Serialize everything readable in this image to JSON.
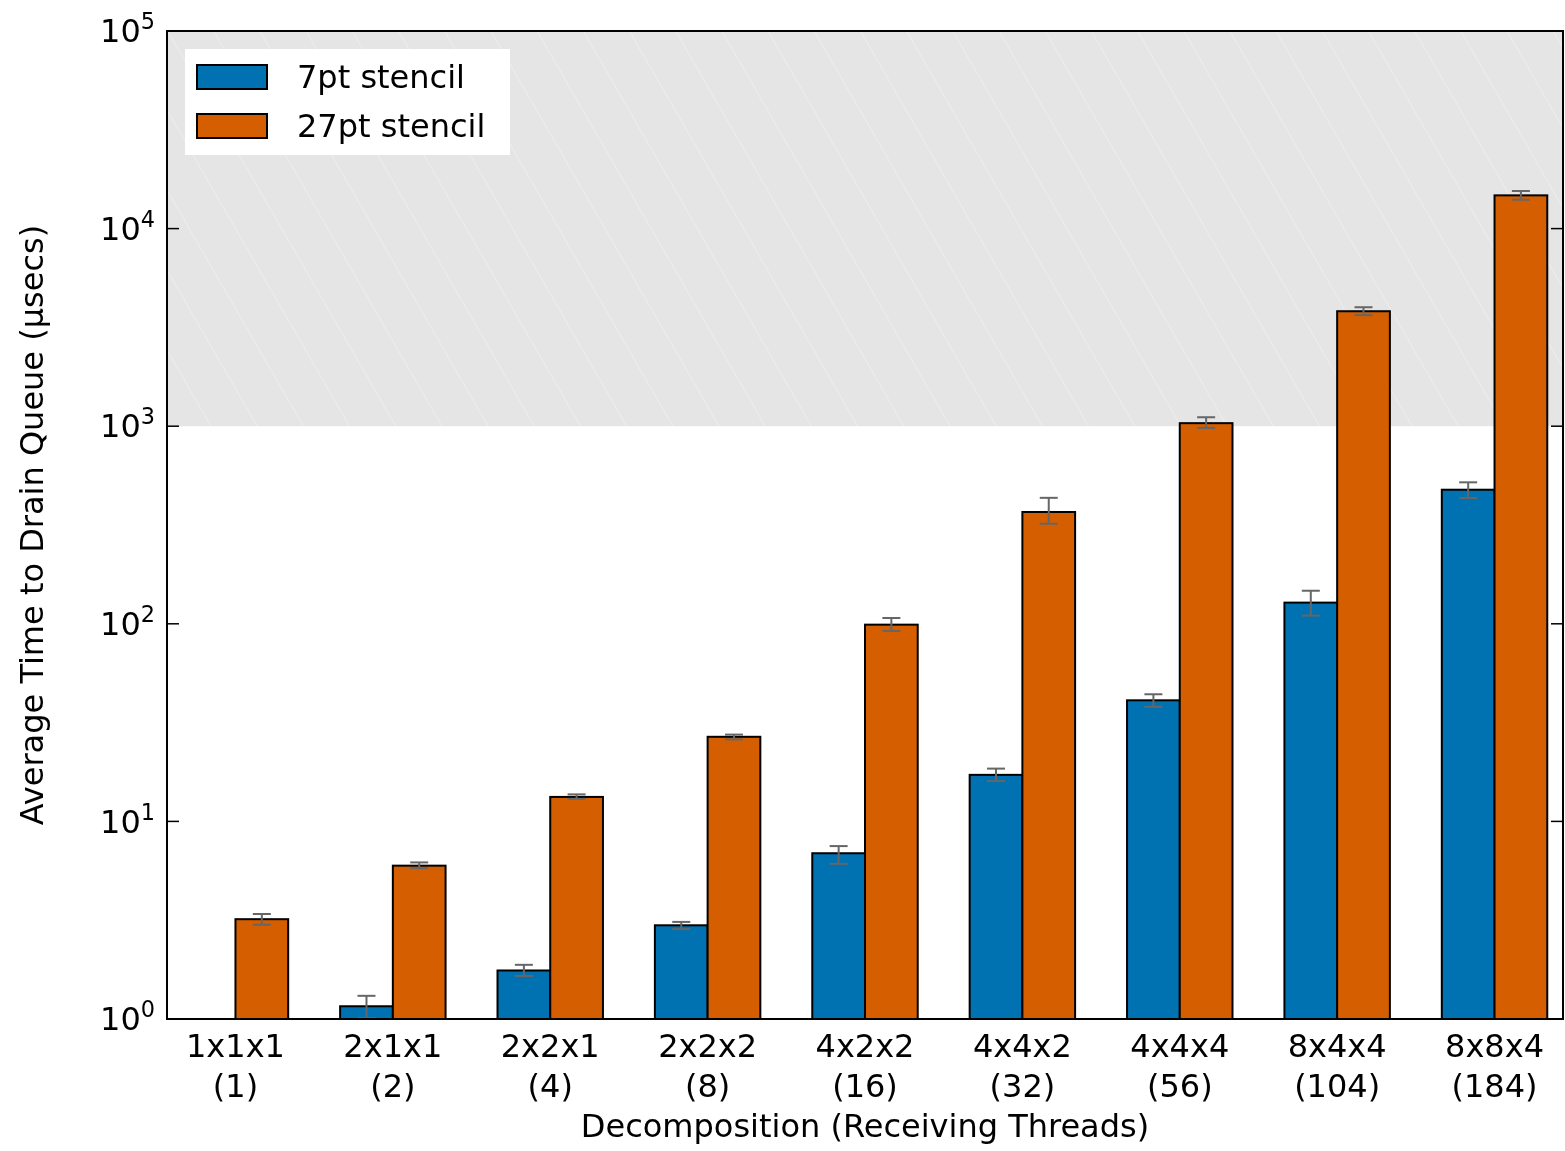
{
  "chart_data": {
    "type": "bar",
    "xlabel": "Decomposition (Receiving Threads)",
    "ylabel": "Average Time to Drain Queue (μsecs)",
    "categories": [
      "1x1x1\n(1)",
      "2x1x1\n(2)",
      "2x2x1\n(4)",
      "2x2x2\n(8)",
      "4x2x2\n(16)",
      "4x4x2\n(32)",
      "4x4x4\n(56)",
      "8x4x4\n(104)",
      "8x8x4\n(184)"
    ],
    "series": [
      {
        "name": "7pt stencil",
        "color": "#0072b2",
        "values": [
          null,
          1.16,
          1.76,
          2.98,
          6.9,
          17.2,
          41,
          128,
          477
        ],
        "errors": [
          null,
          [
            1.01,
            1.31
          ],
          [
            1.65,
            1.88
          ],
          [
            2.85,
            3.1
          ],
          [
            6.1,
            7.5
          ],
          [
            16,
            18.5
          ],
          [
            38,
            44
          ],
          [
            110,
            147
          ],
          [
            433,
            520
          ]
        ]
      },
      {
        "name": "27pt stencil",
        "color": "#d55e00",
        "values": [
          3.2,
          5.97,
          13.3,
          26.8,
          99,
          368,
          1036,
          3818,
          14730
        ],
        "errors": [
          [
            3.0,
            3.4
          ],
          [
            5.8,
            6.2
          ],
          [
            13,
            13.7
          ],
          [
            26,
            27.5
          ],
          [
            92,
            107
          ],
          [
            321,
            434
          ],
          [
            980,
            1110
          ],
          [
            3650,
            4000
          ],
          [
            14000,
            15500
          ]
        ]
      }
    ],
    "ylim": [
      1,
      100000
    ],
    "log": true,
    "yticks": [
      {
        "value": 1,
        "label": "10$^{0}$"
      },
      {
        "value": 10,
        "label": "10$^{1}$"
      },
      {
        "value": 100,
        "label": "10$^{2}$"
      },
      {
        "value": 1000,
        "label": "10$^{3}$"
      },
      {
        "value": 10000,
        "label": "10$^{4}$"
      },
      {
        "value": 100000,
        "label": "10$^{5}$"
      }
    ],
    "bands": [
      {
        "axis": "y",
        "from": 1000,
        "to": 100000,
        "color": "#e5e5e5"
      }
    ],
    "legend": "top left",
    "grid": false
  }
}
